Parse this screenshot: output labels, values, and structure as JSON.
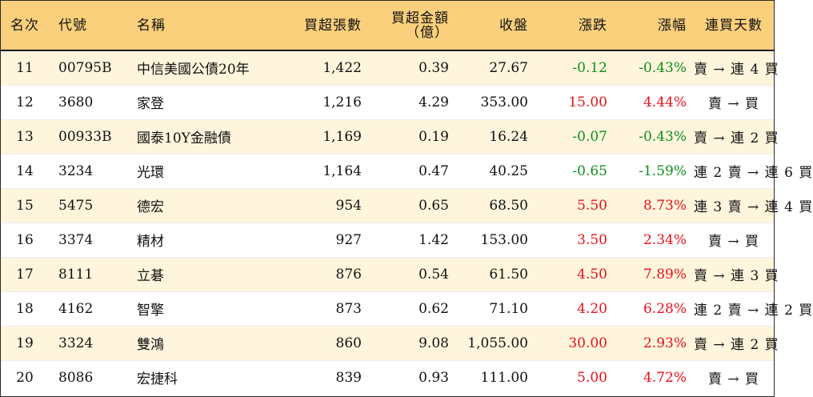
{
  "headers": {
    "rank": "名次",
    "code": "代號",
    "name": "名稱",
    "net_volume": "買超張數",
    "net_amount_line1": "買超金額",
    "net_amount_line2": "（億）",
    "close": "收盤",
    "change": "漲跌",
    "change_pct": "漲幅",
    "streak": "連買天數"
  },
  "rows": [
    {
      "rank": "11",
      "code": "00795B",
      "name": "中信美國公債20年",
      "net_volume": "1,422",
      "net_amount": "0.39",
      "close": "27.67",
      "change": "-0.12",
      "change_pct": "-0.43%",
      "direction": "down",
      "streak": "賣 → 連 4 買"
    },
    {
      "rank": "12",
      "code": "3680",
      "name": "家登",
      "net_volume": "1,216",
      "net_amount": "4.29",
      "close": "353.00",
      "change": "15.00",
      "change_pct": "4.44%",
      "direction": "up",
      "streak": "賣 → 買"
    },
    {
      "rank": "13",
      "code": "00933B",
      "name": "國泰10Y金融債",
      "net_volume": "1,169",
      "net_amount": "0.19",
      "close": "16.24",
      "change": "-0.07",
      "change_pct": "-0.43%",
      "direction": "down",
      "streak": "賣 → 連 2 買"
    },
    {
      "rank": "14",
      "code": "3234",
      "name": "光環",
      "net_volume": "1,164",
      "net_amount": "0.47",
      "close": "40.25",
      "change": "-0.65",
      "change_pct": "-1.59%",
      "direction": "down",
      "streak": "連 2 賣 → 連 6 買"
    },
    {
      "rank": "15",
      "code": "5475",
      "name": "德宏",
      "net_volume": "954",
      "net_amount": "0.65",
      "close": "68.50",
      "change": "5.50",
      "change_pct": "8.73%",
      "direction": "up",
      "streak": "連 3 賣 → 連 4 買"
    },
    {
      "rank": "16",
      "code": "3374",
      "name": "精材",
      "net_volume": "927",
      "net_amount": "1.42",
      "close": "153.00",
      "change": "3.50",
      "change_pct": "2.34%",
      "direction": "up",
      "streak": "賣 → 買"
    },
    {
      "rank": "17",
      "code": "8111",
      "name": "立碁",
      "net_volume": "876",
      "net_amount": "0.54",
      "close": "61.50",
      "change": "4.50",
      "change_pct": "7.89%",
      "direction": "up",
      "streak": "賣 → 連 3 買"
    },
    {
      "rank": "18",
      "code": "4162",
      "name": "智擎",
      "net_volume": "873",
      "net_amount": "0.62",
      "close": "71.10",
      "change": "4.20",
      "change_pct": "6.28%",
      "direction": "up",
      "streak": "連 2 賣 → 連 2 買"
    },
    {
      "rank": "19",
      "code": "3324",
      "name": "雙鴻",
      "net_volume": "860",
      "net_amount": "9.08",
      "close": "1,055.00",
      "change": "30.00",
      "change_pct": "2.93%",
      "direction": "up",
      "streak": "賣 → 連 2 買"
    },
    {
      "rank": "20",
      "code": "8086",
      "name": "宏捷科",
      "net_volume": "839",
      "net_amount": "0.93",
      "close": "111.00",
      "change": "5.00",
      "change_pct": "4.72%",
      "direction": "up",
      "streak": "賣 → 買"
    }
  ],
  "colors": {
    "header_bg": "#fbd07c",
    "stripe_bg": "#fff5dd",
    "up": "#e8111b",
    "down": "#0e8f1e"
  }
}
